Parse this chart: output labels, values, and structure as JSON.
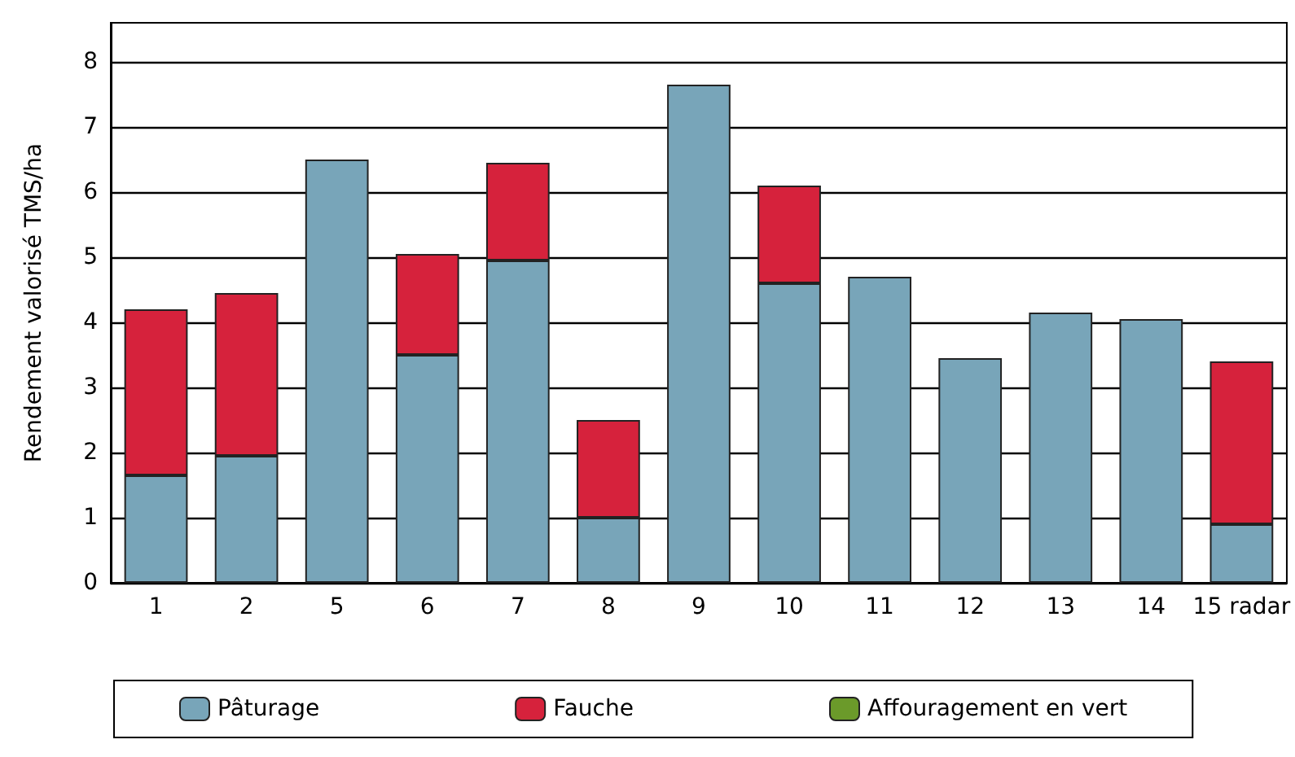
{
  "chart_data": {
    "type": "bar",
    "stacked": true,
    "ylabel": "Rendement valorisé TMS/ha",
    "categories": [
      "1",
      "2",
      "5",
      "6",
      "7",
      "8",
      "9",
      "10",
      "11",
      "12",
      "13",
      "14",
      "15 radar"
    ],
    "series": [
      {
        "name": "Pâturage",
        "color": "#78a5b9",
        "values": [
          1.65,
          1.95,
          6.5,
          3.5,
          4.95,
          1.0,
          7.65,
          4.6,
          4.7,
          3.45,
          4.15,
          4.05,
          0.9
        ]
      },
      {
        "name": "Fauche",
        "color": "#d6223c",
        "values": [
          2.55,
          2.5,
          null,
          1.55,
          1.5,
          1.5,
          null,
          1.5,
          null,
          null,
          null,
          null,
          2.5
        ]
      },
      {
        "name": "Affouragement en vert",
        "color": "#6b9a2a",
        "values": [
          null,
          null,
          null,
          null,
          null,
          null,
          null,
          null,
          null,
          null,
          null,
          null,
          null
        ]
      }
    ],
    "ylim": [
      0,
      8.6
    ],
    "yticks": [
      0,
      1,
      2,
      3,
      4,
      5,
      6,
      7,
      8
    ],
    "grid": "y",
    "legend": "bottom"
  }
}
